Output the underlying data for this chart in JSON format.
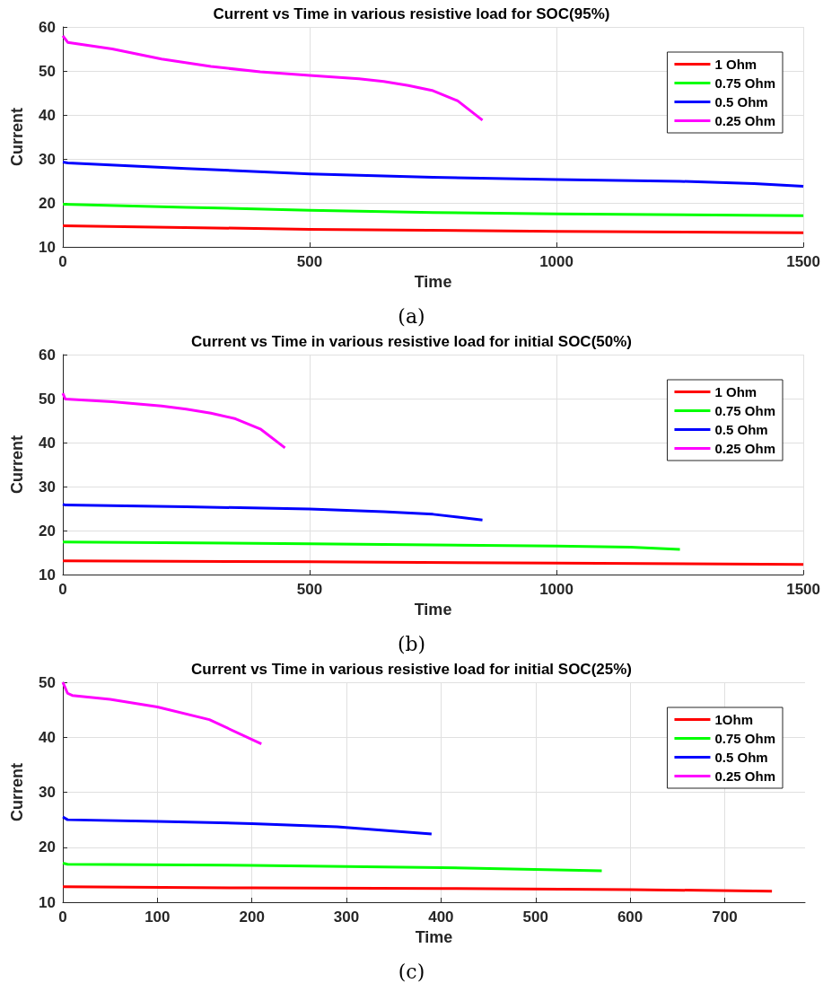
{
  "chart_data": [
    {
      "type": "line",
      "title": "Current vs Time in various resistive load for SOC(95%)",
      "xlabel": "Time",
      "ylabel": "Current",
      "annotations": [
        "(a)"
      ],
      "xlim": [
        0,
        1500
      ],
      "xticks": [
        0,
        500,
        1000,
        1500
      ],
      "ylim": [
        10,
        60
      ],
      "yticks": [
        10,
        20,
        30,
        40,
        50,
        60
      ],
      "grid": true,
      "legend": "top right",
      "marker": "none",
      "line_style": "solid",
      "series": [
        {
          "name": "1 Ohm",
          "color": "#ff0000",
          "x": [
            0,
            500,
            1000,
            1500
          ],
          "values": [
            14.8,
            14.0,
            13.5,
            13.2
          ]
        },
        {
          "name": "0.75 Ohm",
          "color": "#00ff00",
          "x": [
            0,
            250,
            500,
            750,
            1000,
            1500
          ],
          "values": [
            19.7,
            19.0,
            18.3,
            17.8,
            17.5,
            17.1
          ]
        },
        {
          "name": "0.5 Ohm",
          "color": "#0000ff",
          "x": [
            0,
            10,
            250,
            500,
            750,
            1000,
            1250,
            1400,
            1500
          ],
          "values": [
            29.3,
            29.1,
            27.8,
            26.6,
            25.8,
            25.3,
            24.9,
            24.4,
            23.8
          ]
        },
        {
          "name": "0.25 Ohm",
          "color": "#ff00ff",
          "x": [
            0,
            10,
            100,
            200,
            300,
            400,
            500,
            600,
            650,
            700,
            750,
            800,
            850
          ],
          "values": [
            58,
            56.5,
            55,
            52.7,
            51,
            49.8,
            49,
            48.2,
            47.6,
            46.7,
            45.5,
            43.2,
            38.8
          ]
        }
      ]
    },
    {
      "type": "line",
      "title": "Current vs Time in various resistive load for initial SOC(50%)",
      "xlabel": "Time",
      "ylabel": "Current",
      "annotations": [
        "(b)"
      ],
      "xlim": [
        0,
        1500
      ],
      "xticks": [
        0,
        500,
        1000,
        1500
      ],
      "ylim": [
        10,
        60
      ],
      "yticks": [
        10,
        20,
        30,
        40,
        50,
        60
      ],
      "grid": true,
      "legend": "top right",
      "marker": "none",
      "line_style": "solid",
      "series": [
        {
          "name": "1 Ohm",
          "color": "#ff0000",
          "x": [
            0,
            500,
            1000,
            1500
          ],
          "values": [
            13.1,
            12.9,
            12.6,
            12.3
          ]
        },
        {
          "name": "0.75 Ohm",
          "color": "#00ff00",
          "x": [
            0,
            500,
            1000,
            1150,
            1250
          ],
          "values": [
            17.4,
            17.0,
            16.5,
            16.2,
            15.7
          ]
        },
        {
          "name": "0.5 Ohm",
          "color": "#0000ff",
          "x": [
            0,
            5,
            250,
            500,
            650,
            750,
            850
          ],
          "values": [
            26,
            25.8,
            25.4,
            24.9,
            24.3,
            23.7,
            22.4
          ]
        },
        {
          "name": "0.25 Ohm",
          "color": "#ff00ff",
          "x": [
            0,
            5,
            100,
            200,
            250,
            300,
            350,
            400,
            450
          ],
          "values": [
            51.2,
            49.9,
            49.3,
            48.3,
            47.6,
            46.7,
            45.4,
            43.1,
            38.8
          ]
        }
      ]
    },
    {
      "type": "line",
      "title": "Current vs Time in various resistive load for initial SOC(25%)",
      "xlabel": "Time",
      "ylabel": "Current",
      "annotations": [
        "(c)"
      ],
      "xlim": [
        0,
        785
      ],
      "xticks": [
        0,
        100,
        200,
        300,
        400,
        500,
        600,
        700
      ],
      "ylim": [
        10,
        50
      ],
      "yticks": [
        10,
        20,
        30,
        40,
        50
      ],
      "grid": true,
      "legend": "top right",
      "marker": "none",
      "line_style": "solid",
      "series": [
        {
          "name": "1Ohm",
          "color": "#ff0000",
          "x": [
            0,
            200,
            400,
            600,
            750
          ],
          "values": [
            12.8,
            12.6,
            12.5,
            12.3,
            12.0
          ]
        },
        {
          "name": "0.75 Ohm",
          "color": "#00ff00",
          "x": [
            0,
            5,
            200,
            400,
            570
          ],
          "values": [
            17.1,
            16.9,
            16.7,
            16.3,
            15.7
          ]
        },
        {
          "name": "0.5 Ohm",
          "color": "#0000ff",
          "x": [
            0,
            5,
            100,
            200,
            290,
            390
          ],
          "values": [
            25.5,
            25,
            24.7,
            24.3,
            23.7,
            22.4
          ]
        },
        {
          "name": "0.25 Ohm",
          "color": "#ff00ff",
          "x": [
            0,
            5,
            10,
            50,
            100,
            155,
            210
          ],
          "values": [
            50,
            48,
            47.6,
            46.9,
            45.5,
            43.2,
            38.8
          ]
        }
      ]
    }
  ]
}
